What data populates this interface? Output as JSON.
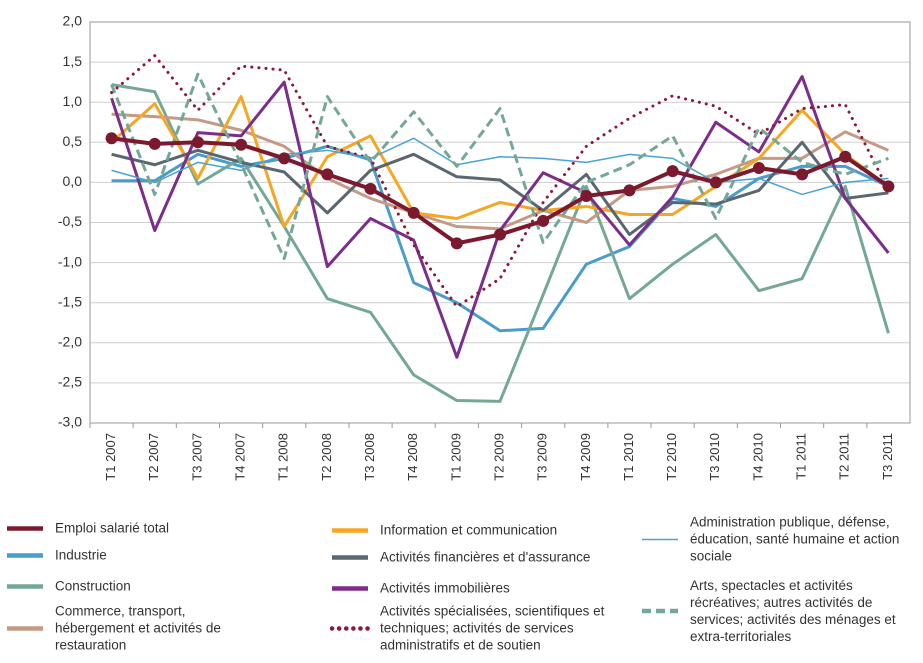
{
  "chart_data": {
    "type": "line",
    "categories": [
      "T1 2007",
      "T2 2007",
      "T3 2007",
      "T4 2007",
      "T1 2008",
      "T2 2008",
      "T3 2008",
      "T4 2008",
      "T1 2009",
      "T2 2009",
      "T3 2009",
      "T4 2009",
      "T1 2010",
      "T2 2010",
      "T3 2010",
      "T4 2010",
      "T1 2011",
      "T2 2011",
      "T3 2011"
    ],
    "ylim": [
      -3,
      2
    ],
    "yticks": [
      {
        "value": -3,
        "label": "-3,0"
      },
      {
        "value": -2.5,
        "label": "-2,5"
      },
      {
        "value": -2,
        "label": "-2,0"
      },
      {
        "value": -1.5,
        "label": "-1,5"
      },
      {
        "value": -1,
        "label": "-1,0"
      },
      {
        "value": -0.5,
        "label": "-0,5"
      },
      {
        "value": 0,
        "label": "0,0"
      },
      {
        "value": 0.5,
        "label": "0,5"
      },
      {
        "value": 1,
        "label": "1,0"
      },
      {
        "value": 1.5,
        "label": "1,5"
      },
      {
        "value": 2,
        "label": "2,0"
      }
    ],
    "grid": true,
    "series": [
      {
        "name": "Industrie",
        "color": "#4a9cc9",
        "dash": "solid",
        "weight": "normal",
        "values": [
          0.02,
          0.02,
          0.35,
          0.2,
          0.3,
          0.45,
          0.28,
          -1.25,
          -1.5,
          -1.85,
          -1.82,
          -1.02,
          -0.8,
          -0.2,
          -0.3,
          0.05,
          0.2,
          0.2,
          -0.05
        ]
      },
      {
        "name": "Construction",
        "color": "#74a896",
        "dash": "solid",
        "weight": "normal",
        "values": [
          1.22,
          1.13,
          -0.02,
          0.3,
          -0.55,
          -1.45,
          -1.62,
          -2.4,
          -2.72,
          -2.73,
          -1.4,
          -0.05,
          -1.45,
          -1.02,
          -0.65,
          -1.35,
          -1.2,
          -0.05,
          -1.88
        ]
      },
      {
        "name": "Commerce, transport, hébergement et activités de restauration",
        "color": "#c49a84",
        "dash": "solid",
        "weight": "normal",
        "values": [
          0.85,
          0.82,
          0.78,
          0.65,
          0.45,
          0.05,
          -0.2,
          -0.38,
          -0.55,
          -0.58,
          -0.35,
          -0.5,
          -0.1,
          -0.05,
          0.1,
          0.3,
          0.3,
          0.63,
          0.4
        ]
      },
      {
        "name": "Information et communication",
        "color": "#f5a623",
        "dash": "solid",
        "weight": "normal",
        "values": [
          0.5,
          0.98,
          0.05,
          1.07,
          -0.55,
          0.32,
          0.58,
          -0.38,
          -0.45,
          -0.25,
          -0.35,
          -0.3,
          -0.4,
          -0.4,
          -0.05,
          0.3,
          0.9,
          0.35,
          -0.05
        ]
      },
      {
        "name": "Activités financières et d'assurance",
        "color": "#5a6770",
        "dash": "solid",
        "weight": "normal",
        "values": [
          0.35,
          0.22,
          0.4,
          0.25,
          0.13,
          -0.38,
          0.15,
          0.35,
          0.07,
          0.03,
          -0.35,
          0.1,
          -0.65,
          -0.25,
          -0.27,
          -0.1,
          0.5,
          -0.2,
          -0.13
        ]
      },
      {
        "name": "Activités immobilières",
        "color": "#7b2d8a",
        "dash": "solid",
        "weight": "normal",
        "values": [
          1.05,
          -0.6,
          0.62,
          0.58,
          1.25,
          -1.05,
          -0.45,
          -0.72,
          -2.18,
          -0.6,
          0.12,
          -0.13,
          -0.78,
          -0.18,
          0.75,
          0.38,
          1.32,
          -0.2,
          -0.88
        ]
      },
      {
        "name": "Activités spécialisées, scientifiques et techniques; activités de services administratifs et de soutien",
        "color": "#8b1a3a",
        "dash": "dotted",
        "weight": "normal",
        "values": [
          1.12,
          1.58,
          0.9,
          1.45,
          1.4,
          0.45,
          0.3,
          -0.78,
          -1.55,
          -1.2,
          -0.25,
          0.45,
          0.8,
          1.08,
          0.95,
          0.6,
          0.92,
          0.97,
          -0.1
        ]
      },
      {
        "name": "Administration publique, défense, éducation, santé humaine et action sociale",
        "color": "#4aa3d6",
        "dash": "solid",
        "weight": "thin",
        "values": [
          0.15,
          0.0,
          0.25,
          0.15,
          0.35,
          0.4,
          0.3,
          0.55,
          0.22,
          0.32,
          0.3,
          0.25,
          0.35,
          0.3,
          0.0,
          0.05,
          -0.15,
          0.0,
          0.05
        ]
      },
      {
        "name": "Arts, spectacles et activités récréatives; autres activités de services; activités des ménages et extra-territoriales",
        "color": "#74a896",
        "dash": "dashed",
        "weight": "normal",
        "values": [
          1.22,
          -0.15,
          1.35,
          0.23,
          -0.95,
          1.07,
          0.25,
          0.88,
          0.2,
          0.92,
          -0.75,
          0.0,
          0.22,
          0.58,
          -0.45,
          0.68,
          0.25,
          0.1,
          0.3
        ]
      },
      {
        "name": "Emploi salarié total",
        "color": "#7b1a2e",
        "dash": "solid",
        "weight": "bold",
        "markers": true,
        "values": [
          0.55,
          0.48,
          0.5,
          0.47,
          0.3,
          0.1,
          -0.08,
          -0.38,
          -0.76,
          -0.65,
          -0.48,
          -0.17,
          -0.1,
          0.14,
          0.0,
          0.18,
          0.1,
          0.32,
          -0.05
        ]
      }
    ]
  }
}
